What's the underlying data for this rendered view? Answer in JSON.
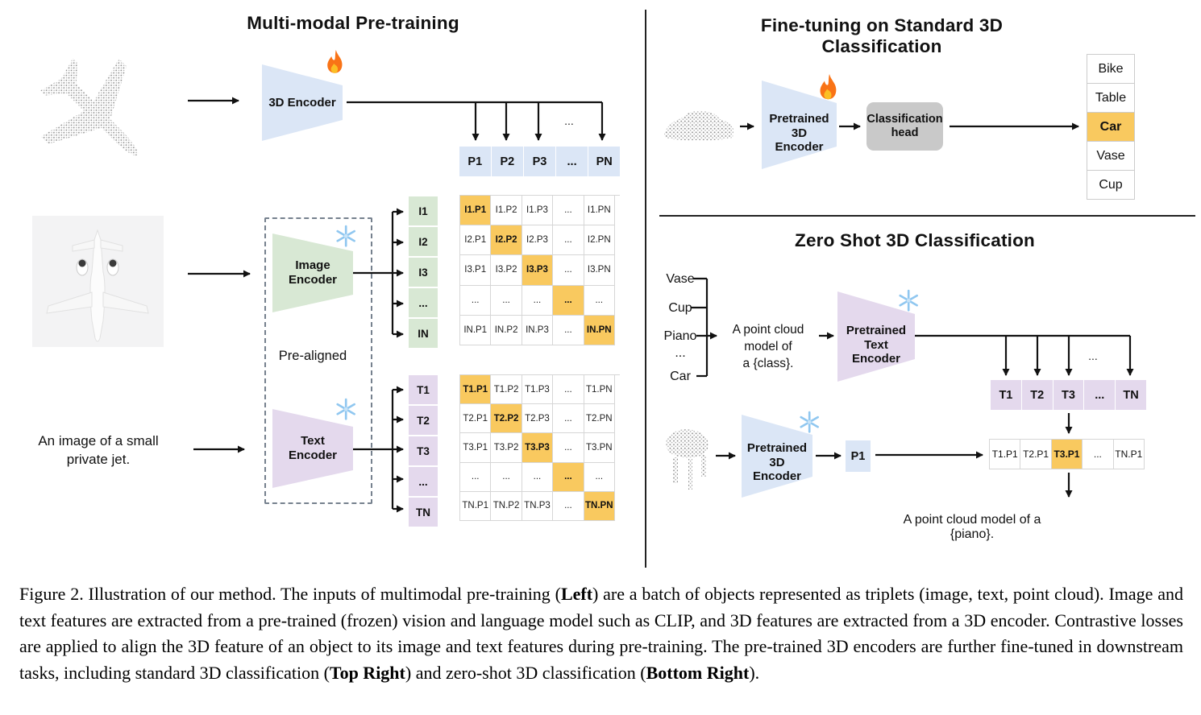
{
  "colors": {
    "blue": "#dbe6f6",
    "green": "#d8e8d4",
    "purple": "#e4d9ed",
    "orange": "#f9c95f",
    "gray": "#c9c9c9",
    "border": "#d6d6d6"
  },
  "pretraining": {
    "title": "Multi-modal Pre-training",
    "encoder_3d": {
      "label": "3D Encoder",
      "status_icon": "fire"
    },
    "p_row": [
      "P1",
      "P2",
      "P3",
      "...",
      "PN"
    ],
    "ellipsis": "...",
    "image_branch": {
      "encoder_lines": [
        "Image",
        "Encoder"
      ],
      "status_icon": "snowflake",
      "labels": [
        "I1",
        "I2",
        "I3",
        "...",
        "IN"
      ],
      "matrix": [
        [
          "I1.P1",
          "I1.P2",
          "I1.P3",
          "...",
          "I1.PN"
        ],
        [
          "I2.P1",
          "I2.P2",
          "I2.P3",
          "...",
          "I2.PN"
        ],
        [
          "I3.P1",
          "I3.P2",
          "I3.P3",
          "...",
          "I3.PN"
        ],
        [
          "...",
          "...",
          "...",
          "...",
          "..."
        ],
        [
          "IN.P1",
          "IN.P2",
          "IN.P3",
          "...",
          "IN.PN"
        ]
      ]
    },
    "pre_aligned_label": "Pre-aligned",
    "text_branch": {
      "encoder_lines": [
        "Text",
        "Encoder"
      ],
      "status_icon": "snowflake",
      "labels": [
        "T1",
        "T2",
        "T3",
        "...",
        "TN"
      ],
      "matrix": [
        [
          "T1.P1",
          "T1.P2",
          "T1.P3",
          "...",
          "T1.PN"
        ],
        [
          "T2.P1",
          "T2.P2",
          "T2.P3",
          "...",
          "T2.PN"
        ],
        [
          "T3.P1",
          "T3.P2",
          "T3.P3",
          "...",
          "T3.PN"
        ],
        [
          "...",
          "...",
          "...",
          "...",
          "..."
        ],
        [
          "TN.P1",
          "TN.P2",
          "TN.P3",
          "...",
          "TN.PN"
        ]
      ]
    },
    "image_caption_lines": [
      "An image of a small",
      "private jet."
    ]
  },
  "finetuning": {
    "title": "Fine-tuning on Standard 3D Classification",
    "encoder_lines": [
      "Pretrained 3D",
      "Encoder"
    ],
    "status_icon": "fire",
    "head_lines": [
      "Classification",
      "head"
    ],
    "classes": [
      {
        "label": "Bike"
      },
      {
        "label": "Table"
      },
      {
        "label": "Car",
        "highlighted": true
      },
      {
        "label": "Vase"
      },
      {
        "label": "Cup"
      }
    ]
  },
  "zeroshot": {
    "title": "Zero Shot 3D Classification",
    "prompt_classes": [
      "Vase",
      "Cup",
      "Piano",
      "...",
      "Car"
    ],
    "prompt_lines": [
      "A point cloud model of",
      "a {class}."
    ],
    "text_encoder_lines": [
      "Pretrained Text",
      "Encoder"
    ],
    "text_encoder_icon": "snowflake",
    "t_row": [
      "T1",
      "T2",
      "T3",
      "...",
      "TN"
    ],
    "ellipsis": "...",
    "encoder_3d_lines": [
      "Pretrained 3D",
      "Encoder"
    ],
    "encoder_3d_icon": "snowflake",
    "p1_label": "P1",
    "result_row": [
      {
        "label": "T1.P1"
      },
      {
        "label": "T2.P1"
      },
      {
        "label": "T3.P1",
        "highlighted": true
      },
      {
        "label": "..."
      },
      {
        "label": "TN.P1"
      }
    ],
    "result_text": "A point cloud model of a {piano}."
  },
  "caption": {
    "segments": [
      {
        "text": "Figure 2. Illustration of our method. The inputs of multimodal pre-training ("
      },
      {
        "text": "Left",
        "bold": true
      },
      {
        "text": ") are a batch of objects represented as triplets (image, text, point cloud). Image and text features are extracted from a pre-trained (frozen) vision and language model such as CLIP, and 3D features are extracted from a 3D encoder. Contrastive losses are applied to align the 3D feature of an object to its image and text features during pre-training. The pre-trained 3D encoders are further fine-tuned in downstream tasks, including standard 3D classification ("
      },
      {
        "text": "Top Right",
        "bold": true
      },
      {
        "text": ") and zero-shot 3D classification ("
      },
      {
        "text": "Bottom Right",
        "bold": true
      },
      {
        "text": ")."
      }
    ]
  }
}
